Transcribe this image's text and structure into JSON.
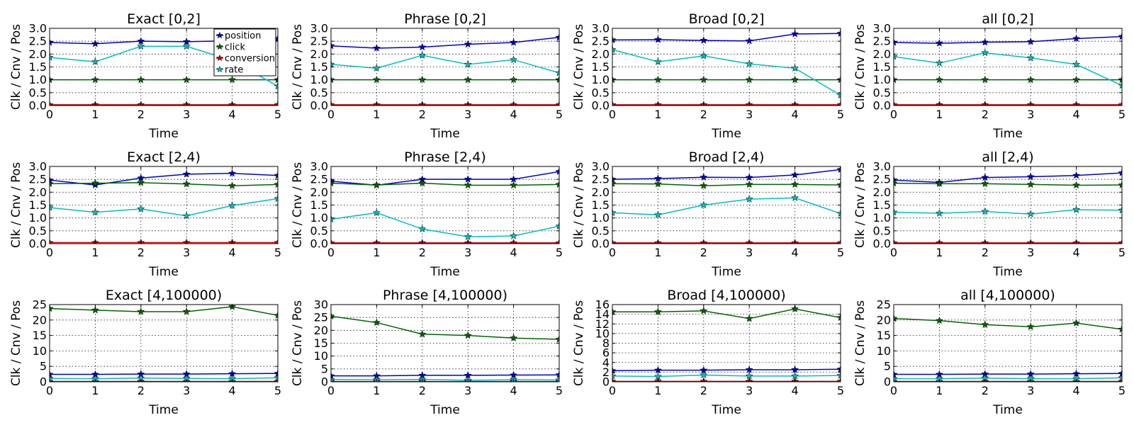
{
  "chart_data": [
    {
      "type": "line",
      "title": "Exact [0,2]",
      "xlabel": "Time",
      "ylabel": "Clk / Cnv / Pos",
      "x": [
        0,
        1,
        2,
        3,
        4,
        5
      ],
      "xlim": [
        0,
        5
      ],
      "ylim": [
        0,
        3
      ],
      "yticks": [
        0.0,
        0.5,
        1.0,
        1.5,
        2.0,
        2.5,
        3.0
      ],
      "ytick_labels": [
        "0.0",
        "0.5",
        "1.0",
        "1.5",
        "2.0",
        "2.5",
        "3.0"
      ],
      "grid": true,
      "legend_position": "top-right",
      "series": [
        {
          "name": "position",
          "color": "#0000cc",
          "values": [
            2.45,
            2.4,
            2.5,
            2.48,
            2.52,
            2.6
          ]
        },
        {
          "name": "click",
          "color": "#006400",
          "values": [
            1.0,
            1.0,
            1.0,
            1.0,
            1.0,
            1.0
          ]
        },
        {
          "name": "conversion",
          "color": "#cc0000",
          "values": [
            0.03,
            0.03,
            0.03,
            0.03,
            0.03,
            0.03
          ]
        },
        {
          "name": "rate",
          "color": "#00bfbf",
          "values": [
            1.87,
            1.7,
            2.3,
            2.3,
            1.75,
            0.75
          ]
        }
      ]
    },
    {
      "type": "line",
      "title": "Phrase [0,2]",
      "xlabel": "Time",
      "ylabel": "Clk / Cnv / Pos",
      "x": [
        0,
        1,
        2,
        3,
        4,
        5
      ],
      "xlim": [
        0,
        5
      ],
      "ylim": [
        0,
        3
      ],
      "yticks": [
        0.0,
        0.5,
        1.0,
        1.5,
        2.0,
        2.5,
        3.0
      ],
      "ytick_labels": [
        "0.0",
        "0.5",
        "1.0",
        "1.5",
        "2.0",
        "2.5",
        "3.0"
      ],
      "grid": true,
      "series": [
        {
          "color": "#0000cc",
          "values": [
            2.32,
            2.23,
            2.27,
            2.38,
            2.45,
            2.65
          ]
        },
        {
          "color": "#006400",
          "values": [
            1.0,
            1.0,
            1.0,
            1.0,
            1.0,
            1.0
          ]
        },
        {
          "color": "#cc0000",
          "values": [
            0.03,
            0.03,
            0.03,
            0.03,
            0.03,
            0.03
          ]
        },
        {
          "color": "#00bfbf",
          "values": [
            1.6,
            1.45,
            1.95,
            1.6,
            1.78,
            1.27
          ]
        }
      ]
    },
    {
      "type": "line",
      "title": "Broad [0,2]",
      "xlabel": "Time",
      "ylabel": "Clk / Cnv / Pos",
      "x": [
        0,
        1,
        2,
        3,
        4,
        5
      ],
      "xlim": [
        0,
        5
      ],
      "ylim": [
        0,
        3
      ],
      "yticks": [
        0.0,
        0.5,
        1.0,
        1.5,
        2.0,
        2.5,
        3.0
      ],
      "ytick_labels": [
        "0.0",
        "0.5",
        "1.0",
        "1.5",
        "2.0",
        "2.5",
        "3.0"
      ],
      "grid": true,
      "series": [
        {
          "color": "#0000cc",
          "values": [
            2.55,
            2.56,
            2.53,
            2.51,
            2.78,
            2.8
          ]
        },
        {
          "color": "#006400",
          "values": [
            1.0,
            1.0,
            1.0,
            1.0,
            1.0,
            1.0
          ]
        },
        {
          "color": "#cc0000",
          "values": [
            0.03,
            0.03,
            0.03,
            0.03,
            0.03,
            0.03
          ]
        },
        {
          "color": "#00bfbf",
          "values": [
            2.17,
            1.7,
            1.93,
            1.62,
            1.45,
            0.4
          ]
        }
      ]
    },
    {
      "type": "line",
      "title": "all [0,2]",
      "xlabel": "Time",
      "ylabel": "Clk / Cnv / Pos",
      "x": [
        0,
        1,
        2,
        3,
        4,
        5
      ],
      "xlim": [
        0,
        5
      ],
      "ylim": [
        0,
        3
      ],
      "yticks": [
        0.0,
        0.5,
        1.0,
        1.5,
        2.0,
        2.5,
        3.0
      ],
      "ytick_labels": [
        "0.0",
        "0.5",
        "1.0",
        "1.5",
        "2.0",
        "2.5",
        "3.0"
      ],
      "grid": true,
      "series": [
        {
          "color": "#0000cc",
          "values": [
            2.45,
            2.42,
            2.46,
            2.48,
            2.6,
            2.68
          ]
        },
        {
          "color": "#006400",
          "values": [
            1.0,
            1.0,
            1.0,
            1.0,
            1.0,
            1.0
          ]
        },
        {
          "color": "#cc0000",
          "values": [
            0.03,
            0.03,
            0.03,
            0.03,
            0.03,
            0.03
          ]
        },
        {
          "color": "#00bfbf",
          "values": [
            1.9,
            1.65,
            2.05,
            1.85,
            1.6,
            0.78
          ]
        }
      ]
    },
    {
      "type": "line",
      "title": "Exact [2,4)",
      "xlabel": "Time",
      "ylabel": "Clk / Cnv / Pos",
      "x": [
        0,
        1,
        2,
        3,
        4,
        5
      ],
      "xlim": [
        0,
        5
      ],
      "ylim": [
        0,
        3
      ],
      "yticks": [
        0.0,
        0.5,
        1.0,
        1.5,
        2.0,
        2.5,
        3.0
      ],
      "ytick_labels": [
        "0.0",
        "0.5",
        "1.0",
        "1.5",
        "2.0",
        "2.5",
        "3.0"
      ],
      "grid": true,
      "series": [
        {
          "color": "#0000cc",
          "values": [
            2.47,
            2.28,
            2.55,
            2.7,
            2.73,
            2.65
          ]
        },
        {
          "color": "#006400",
          "values": [
            2.33,
            2.35,
            2.37,
            2.32,
            2.25,
            2.3
          ]
        },
        {
          "color": "#cc0000",
          "values": [
            0.04,
            0.04,
            0.04,
            0.04,
            0.04,
            0.04
          ]
        },
        {
          "color": "#00bfbf",
          "values": [
            1.4,
            1.22,
            1.35,
            1.08,
            1.48,
            1.75
          ]
        }
      ]
    },
    {
      "type": "line",
      "title": "Phrase [2,4)",
      "xlabel": "Time",
      "ylabel": "Clk / Cnv / Pos",
      "x": [
        0,
        1,
        2,
        3,
        4,
        5
      ],
      "xlim": [
        0,
        5
      ],
      "ylim": [
        0,
        3
      ],
      "yticks": [
        0.0,
        0.5,
        1.0,
        1.5,
        2.0,
        2.5,
        3.0
      ],
      "ytick_labels": [
        "0.0",
        "0.5",
        "1.0",
        "1.5",
        "2.0",
        "2.5",
        "3.0"
      ],
      "grid": true,
      "series": [
        {
          "color": "#0000cc",
          "values": [
            2.43,
            2.27,
            2.5,
            2.5,
            2.5,
            2.8
          ]
        },
        {
          "color": "#006400",
          "values": [
            2.35,
            2.28,
            2.35,
            2.27,
            2.27,
            2.3
          ]
        },
        {
          "color": "#cc0000",
          "values": [
            0.03,
            0.03,
            0.03,
            0.03,
            0.03,
            0.03
          ]
        },
        {
          "color": "#00bfbf",
          "values": [
            0.95,
            1.2,
            0.57,
            0.27,
            0.3,
            0.68
          ]
        }
      ]
    },
    {
      "type": "line",
      "title": "Broad [2,4)",
      "xlabel": "Time",
      "ylabel": "Clk / Cnv / Pos",
      "x": [
        0,
        1,
        2,
        3,
        4,
        5
      ],
      "xlim": [
        0,
        5
      ],
      "ylim": [
        0,
        3
      ],
      "yticks": [
        0.0,
        0.5,
        1.0,
        1.5,
        2.0,
        2.5,
        3.0
      ],
      "ytick_labels": [
        "0.0",
        "0.5",
        "1.0",
        "1.5",
        "2.0",
        "2.5",
        "3.0"
      ],
      "grid": true,
      "series": [
        {
          "color": "#0000cc",
          "values": [
            2.5,
            2.53,
            2.58,
            2.57,
            2.67,
            2.88
          ]
        },
        {
          "color": "#006400",
          "values": [
            2.33,
            2.32,
            2.25,
            2.3,
            2.3,
            2.28
          ]
        },
        {
          "color": "#cc0000",
          "values": [
            0.03,
            0.03,
            0.03,
            0.03,
            0.03,
            0.03
          ]
        },
        {
          "color": "#00bfbf",
          "values": [
            1.2,
            1.12,
            1.5,
            1.73,
            1.78,
            1.17
          ]
        }
      ]
    },
    {
      "type": "line",
      "title": "all [2,4)",
      "xlabel": "Time",
      "ylabel": "Clk / Cnv / Pos",
      "x": [
        0,
        1,
        2,
        3,
        4,
        5
      ],
      "xlim": [
        0,
        5
      ],
      "ylim": [
        0,
        3
      ],
      "yticks": [
        0.0,
        0.5,
        1.0,
        1.5,
        2.0,
        2.5,
        3.0
      ],
      "ytick_labels": [
        "0.0",
        "0.5",
        "1.0",
        "1.5",
        "2.0",
        "2.5",
        "3.0"
      ],
      "grid": true,
      "series": [
        {
          "color": "#0000cc",
          "values": [
            2.47,
            2.38,
            2.57,
            2.6,
            2.65,
            2.75
          ]
        },
        {
          "color": "#006400",
          "values": [
            2.35,
            2.33,
            2.33,
            2.3,
            2.27,
            2.28
          ]
        },
        {
          "color": "#cc0000",
          "values": [
            0.03,
            0.03,
            0.03,
            0.03,
            0.03,
            0.03
          ]
        },
        {
          "color": "#00bfbf",
          "values": [
            1.22,
            1.18,
            1.25,
            1.15,
            1.32,
            1.3
          ]
        }
      ]
    },
    {
      "type": "line",
      "title": "Exact [4,100000)",
      "xlabel": "Time",
      "ylabel": "Clk / Cnv / Pos",
      "x": [
        0,
        1,
        2,
        3,
        4,
        5
      ],
      "xlim": [
        0,
        5
      ],
      "ylim": [
        0,
        25
      ],
      "yticks": [
        0,
        5,
        10,
        15,
        20,
        25
      ],
      "ytick_labels": [
        "0",
        "5",
        "10",
        "15",
        "20",
        "25"
      ],
      "grid": true,
      "series": [
        {
          "color": "#0000cc",
          "values": [
            2.4,
            2.4,
            2.5,
            2.5,
            2.6,
            2.7
          ]
        },
        {
          "color": "#006400",
          "values": [
            23.7,
            23.2,
            22.7,
            22.7,
            24.3,
            21.5
          ]
        },
        {
          "color": "#cc0000",
          "values": [
            0.1,
            0.1,
            0.1,
            0.1,
            0.1,
            0.1
          ]
        },
        {
          "color": "#00bfbf",
          "values": [
            1.1,
            1.0,
            1.2,
            1.1,
            1.0,
            1.3
          ]
        }
      ]
    },
    {
      "type": "line",
      "title": "Phrase [4,100000)",
      "xlabel": "Time",
      "ylabel": "Clk / Cnv / Pos",
      "x": [
        0,
        1,
        2,
        3,
        4,
        5
      ],
      "xlim": [
        0,
        5
      ],
      "ylim": [
        0,
        30
      ],
      "yticks": [
        0,
        5,
        10,
        15,
        20,
        25,
        30
      ],
      "ytick_labels": [
        "0",
        "5",
        "10",
        "15",
        "20",
        "25",
        "30"
      ],
      "grid": true,
      "series": [
        {
          "color": "#0000cc",
          "values": [
            2.3,
            2.3,
            2.5,
            2.5,
            2.6,
            2.7
          ]
        },
        {
          "color": "#006400",
          "values": [
            25.5,
            23.0,
            18.5,
            18.0,
            17.0,
            16.5
          ]
        },
        {
          "color": "#cc0000",
          "values": [
            0.1,
            0.1,
            0.1,
            0.1,
            0.1,
            0.1
          ]
        },
        {
          "color": "#00bfbf",
          "values": [
            0.9,
            0.8,
            0.9,
            0.6,
            0.8,
            0.7
          ]
        }
      ]
    },
    {
      "type": "line",
      "title": "Broad [4,100000)",
      "xlabel": "Time",
      "ylabel": "Clk / Cnv / Pos",
      "x": [
        0,
        1,
        2,
        3,
        4,
        5
      ],
      "xlim": [
        0,
        5
      ],
      "ylim": [
        0,
        16
      ],
      "yticks": [
        0,
        2,
        4,
        6,
        8,
        10,
        12,
        14,
        16
      ],
      "ytick_labels": [
        "0",
        "2",
        "4",
        "6",
        "8",
        "10",
        "12",
        "14",
        "16"
      ],
      "grid": true,
      "series": [
        {
          "color": "#0000cc",
          "values": [
            2.3,
            2.4,
            2.4,
            2.5,
            2.5,
            2.6
          ]
        },
        {
          "color": "#006400",
          "values": [
            14.5,
            14.5,
            14.7,
            13.1,
            15.1,
            13.3
          ]
        },
        {
          "color": "#cc0000",
          "values": [
            0.1,
            0.1,
            0.1,
            0.1,
            0.1,
            0.1
          ]
        },
        {
          "color": "#00bfbf",
          "values": [
            1.2,
            1.1,
            1.4,
            1.2,
            1.2,
            1.3
          ]
        }
      ]
    },
    {
      "type": "line",
      "title": "all [4,100000)",
      "xlabel": "Time",
      "ylabel": "Clk / Cnv / Pos",
      "x": [
        0,
        1,
        2,
        3,
        4,
        5
      ],
      "xlim": [
        0,
        5
      ],
      "ylim": [
        0,
        25
      ],
      "yticks": [
        0,
        5,
        10,
        15,
        20,
        25
      ],
      "ytick_labels": [
        "0",
        "5",
        "10",
        "15",
        "20",
        "25"
      ],
      "grid": true,
      "series": [
        {
          "color": "#0000cc",
          "values": [
            2.4,
            2.4,
            2.5,
            2.5,
            2.6,
            2.7
          ]
        },
        {
          "color": "#006400",
          "values": [
            20.5,
            19.8,
            18.5,
            17.8,
            19.0,
            17.0
          ]
        },
        {
          "color": "#cc0000",
          "values": [
            0.1,
            0.1,
            0.1,
            0.1,
            0.1,
            0.1
          ]
        },
        {
          "color": "#00bfbf",
          "values": [
            1.0,
            1.0,
            1.2,
            1.0,
            1.0,
            1.3
          ]
        }
      ]
    }
  ]
}
